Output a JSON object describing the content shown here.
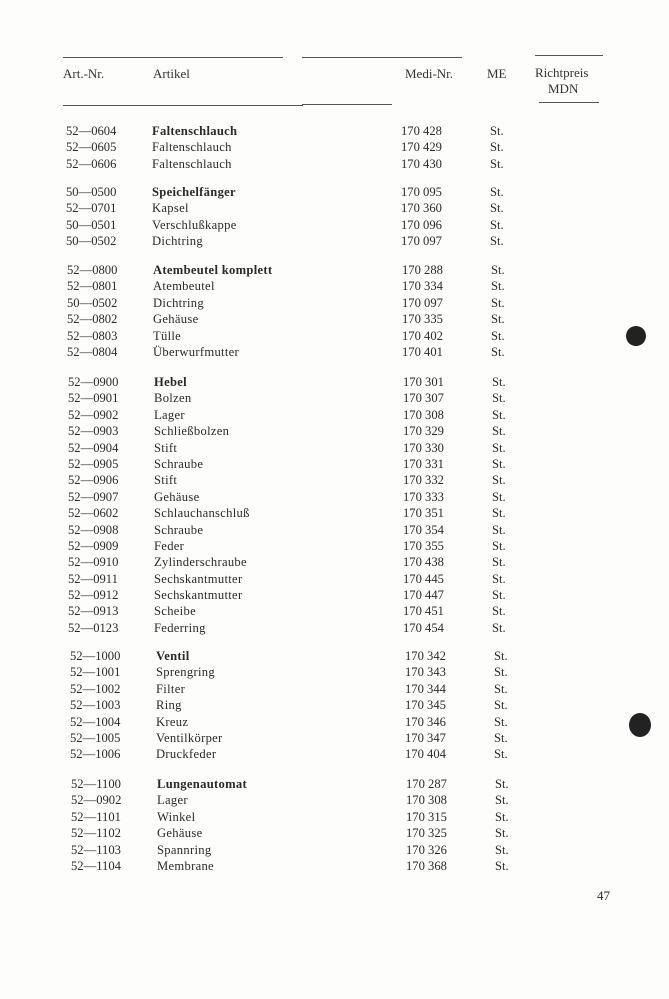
{
  "header": {
    "art_nr": "Art.-Nr.",
    "artikel": "Artikel",
    "medi_nr": "Medi-Nr.",
    "me": "ME",
    "richtpreis": "Richtpreis",
    "mdn": "MDN"
  },
  "groups": [
    {
      "rows": [
        {
          "art": "52—0604",
          "name": "Faltenschlauch",
          "medi": "170 428",
          "me": "St.",
          "bold": true
        },
        {
          "art": "52—0605",
          "name": "Faltenschlauch",
          "medi": "170 429",
          "me": "St."
        },
        {
          "art": "52—0606",
          "name": "Faltenschlauch",
          "medi": "170 430",
          "me": "St."
        }
      ]
    },
    {
      "rows": [
        {
          "art": "50—0500",
          "name": "Speichelfänger",
          "medi": "170 095",
          "me": "St.",
          "bold": true
        },
        {
          "art": "52—0701",
          "name": "Kapsel",
          "medi": "170 360",
          "me": "St."
        },
        {
          "art": "50—0501",
          "name": "Verschlußkappe",
          "medi": "170 096",
          "me": "St."
        },
        {
          "art": "50—0502",
          "name": "Dichtring",
          "medi": "170 097",
          "me": "St."
        }
      ]
    },
    {
      "rows": [
        {
          "art": "52—0800",
          "name": "Atembeutel komplett",
          "medi": "170 288",
          "me": "St.",
          "bold": true
        },
        {
          "art": "52—0801",
          "name": "Atembeutel",
          "medi": "170 334",
          "me": "St."
        },
        {
          "art": "50—0502",
          "name": "Dichtring",
          "medi": "170 097",
          "me": "St."
        },
        {
          "art": "52—0802",
          "name": "Gehäuse",
          "medi": "170 335",
          "me": "St."
        },
        {
          "art": "52—0803",
          "name": "Tülle",
          "medi": "170 402",
          "me": "St."
        },
        {
          "art": "52—0804",
          "name": "Überwurfmutter",
          "medi": "170 401",
          "me": "St."
        }
      ]
    },
    {
      "rows": [
        {
          "art": "52—0900",
          "name": "Hebel",
          "medi": "170 301",
          "me": "St.",
          "bold": true
        },
        {
          "art": "52—0901",
          "name": "Bolzen",
          "medi": "170 307",
          "me": "St."
        },
        {
          "art": "52—0902",
          "name": "Lager",
          "medi": "170 308",
          "me": "St."
        },
        {
          "art": "52—0903",
          "name": "Schließbolzen",
          "medi": "170 329",
          "me": "St."
        },
        {
          "art": "52—0904",
          "name": "Stift",
          "medi": "170 330",
          "me": "St."
        },
        {
          "art": "52—0905",
          "name": "Schraube",
          "medi": "170 331",
          "me": "St."
        },
        {
          "art": "52—0906",
          "name": "Stift",
          "medi": "170 332",
          "me": "St."
        },
        {
          "art": "52—0907",
          "name": "Gehäuse",
          "medi": "170 333",
          "me": "St."
        },
        {
          "art": "52—0602",
          "name": "Schlauchanschluß",
          "medi": "170 351",
          "me": "St."
        },
        {
          "art": "52—0908",
          "name": "Schraube",
          "medi": "170 354",
          "me": "St."
        },
        {
          "art": "52—0909",
          "name": "Feder",
          "medi": "170 355",
          "me": "St."
        },
        {
          "art": "52—0910",
          "name": "Zylinderschraube",
          "medi": "170 438",
          "me": "St."
        },
        {
          "art": "52—0911",
          "name": "Sechskantmutter",
          "medi": "170 445",
          "me": "St."
        },
        {
          "art": "52—0912",
          "name": "Sechskantmutter",
          "medi": "170 447",
          "me": "St."
        },
        {
          "art": "52—0913",
          "name": "Scheibe",
          "medi": "170 451",
          "me": "St."
        },
        {
          "art": "52—0123",
          "name": "Federring",
          "medi": "170 454",
          "me": "St."
        }
      ]
    },
    {
      "rows": [
        {
          "art": "52—1000",
          "name": "Ventil",
          "medi": "170 342",
          "me": "St.",
          "bold": true
        },
        {
          "art": "52—1001",
          "name": "Sprengring",
          "medi": "170 343",
          "me": "St."
        },
        {
          "art": "52—1002",
          "name": "Filter",
          "medi": "170 344",
          "me": "St."
        },
        {
          "art": "52—1003",
          "name": "Ring",
          "medi": "170 345",
          "me": "St."
        },
        {
          "art": "52—1004",
          "name": "Kreuz",
          "medi": "170 346",
          "me": "St."
        },
        {
          "art": "52—1005",
          "name": "Ventilkörper",
          "medi": "170 347",
          "me": "St."
        },
        {
          "art": "52—1006",
          "name": "Druckfeder",
          "medi": "170 404",
          "me": "St."
        }
      ]
    },
    {
      "rows": [
        {
          "art": "52—1100",
          "name": "Lungenautomat",
          "medi": "170 287",
          "me": "St.",
          "bold": true
        },
        {
          "art": "52—0902",
          "name": "Lager",
          "medi": "170 308",
          "me": "St."
        },
        {
          "art": "52—1101",
          "name": "Winkel",
          "medi": "170 315",
          "me": "St."
        },
        {
          "art": "52—1102",
          "name": "Gehäuse",
          "medi": "170 325",
          "me": "St."
        },
        {
          "art": "52—1103",
          "name": "Spannring",
          "medi": "170 326",
          "me": "St."
        },
        {
          "art": "52—1104",
          "name": "Membrane",
          "medi": "170 368",
          "me": "St."
        }
      ]
    }
  ],
  "page_number": "47"
}
